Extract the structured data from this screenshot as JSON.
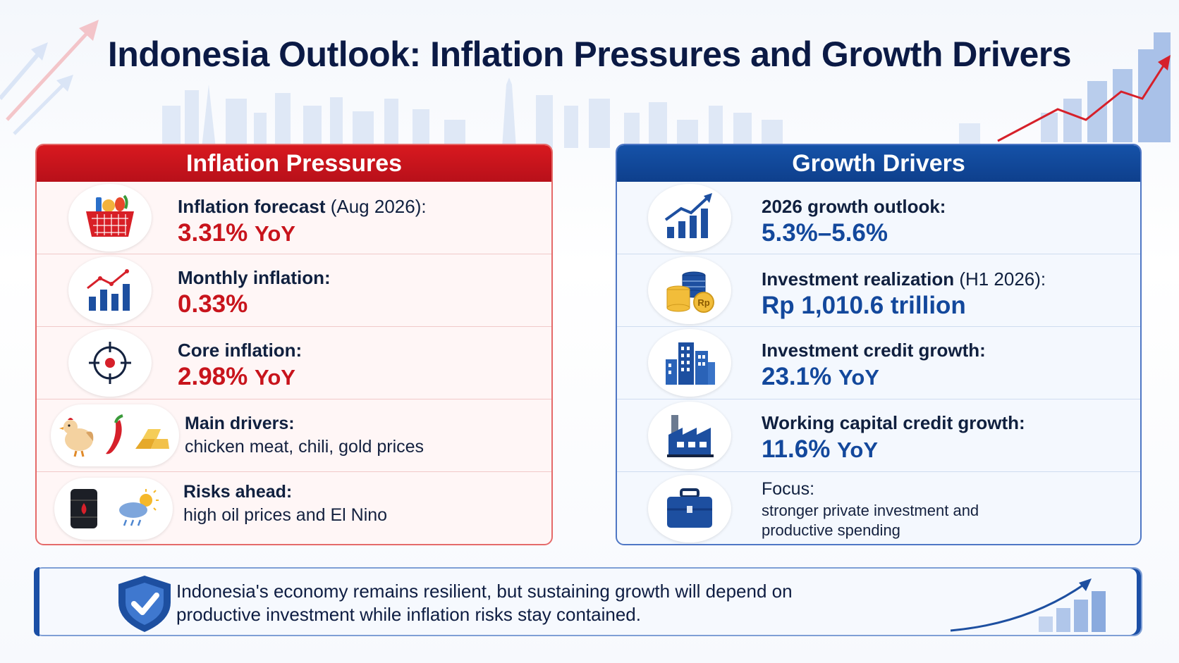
{
  "title": "Indonesia Outlook: Inflation Pressures and Growth Drivers",
  "colors": {
    "inflation_red": "#c8141c",
    "growth_blue": "#13489c",
    "navy": "#0b1a45"
  },
  "inflation": {
    "header": "Inflation Pressures",
    "rows": [
      {
        "icon": "grocery-basket-icon",
        "label": "Inflation forecast",
        "label_note": "(Aug 2026):",
        "value": "3.31%",
        "unit": "YoY"
      },
      {
        "icon": "bar-chart-rising-icon",
        "label": "Monthly inflation:",
        "value": "0.33%"
      },
      {
        "icon": "target-icon",
        "label": "Core inflation:",
        "value": "2.98%",
        "unit": "YoY"
      },
      {
        "icons": [
          "chicken-icon",
          "chili-icon",
          "gold-bars-icon"
        ],
        "label": "Main drivers:",
        "desc": "chicken meat, chili, gold prices"
      },
      {
        "icons": [
          "oil-barrel-icon",
          "weather-icon"
        ],
        "label": "Risks ahead:",
        "desc": "high oil prices and El Nino"
      }
    ]
  },
  "growth": {
    "header": "Growth Drivers",
    "rows": [
      {
        "icon": "growth-chart-icon",
        "label": "2026 growth outlook:",
        "value": "5.3%–5.6%"
      },
      {
        "icon": "coins-icon",
        "coin_text": "Rp",
        "label": "Investment realization",
        "label_note": "(H1 2026):",
        "value": "Rp 1,010.6 trillion"
      },
      {
        "icon": "buildings-icon",
        "label": "Investment credit growth:",
        "value": "23.1%",
        "unit": "YoY"
      },
      {
        "icon": "factory-icon",
        "label": "Working capital credit growth:",
        "value": "11.6%",
        "unit": "YoY"
      },
      {
        "icon": "briefcase-icon",
        "label": "Focus:",
        "desc_lines": [
          "stronger private investment and",
          "productive spending"
        ]
      }
    ]
  },
  "footer": {
    "line1": "Indonesia's economy remains resilient, but sustaining growth will depend on",
    "line2": "productive investment while inflation risks stay contained."
  }
}
